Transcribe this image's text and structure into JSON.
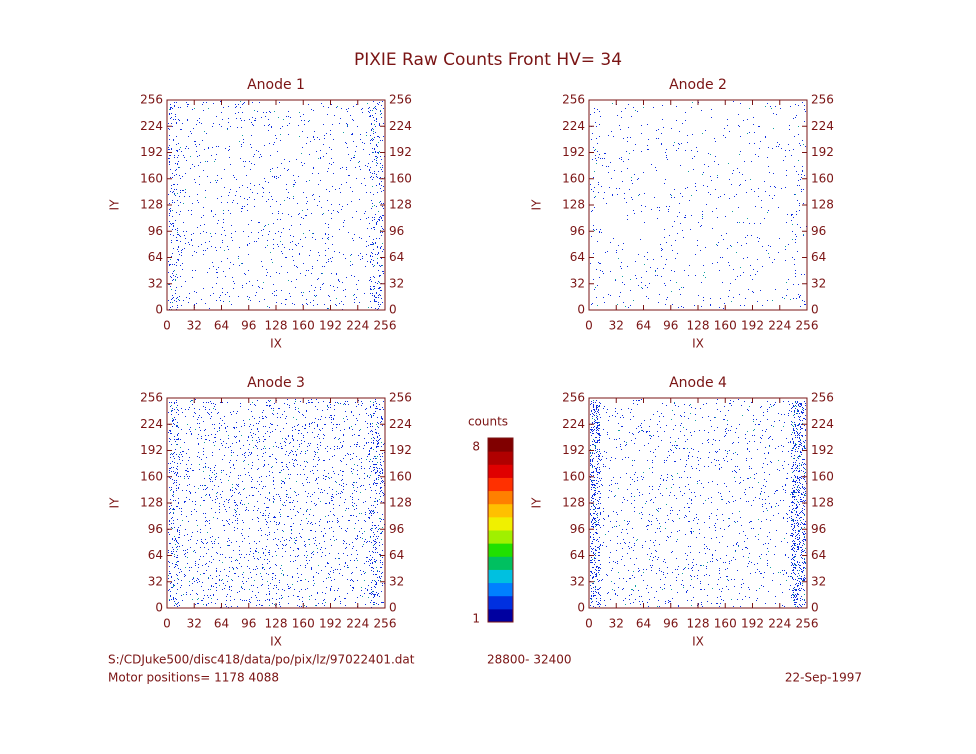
{
  "title": "PIXIE Raw Counts Front HV= 34",
  "chart_data": [
    {
      "type": "heatmap",
      "title": "Anode 1",
      "xlabel": "IX",
      "ylabel": "IY",
      "xlim": [
        0,
        256
      ],
      "ylim": [
        0,
        256
      ],
      "xticks": [
        0,
        32,
        64,
        96,
        128,
        160,
        192,
        224,
        256
      ],
      "yticks": [
        0,
        32,
        64,
        96,
        128,
        160,
        192,
        224,
        256
      ]
    },
    {
      "type": "heatmap",
      "title": "Anode 2",
      "xlabel": "IX",
      "ylabel": "IY",
      "xlim": [
        0,
        256
      ],
      "ylim": [
        0,
        256
      ],
      "xticks": [
        0,
        32,
        64,
        96,
        128,
        160,
        192,
        224,
        256
      ],
      "yticks": [
        0,
        32,
        64,
        96,
        128,
        160,
        192,
        224,
        256
      ]
    },
    {
      "type": "heatmap",
      "title": "Anode 3",
      "xlabel": "IX",
      "ylabel": "IY",
      "xlim": [
        0,
        256
      ],
      "ylim": [
        0,
        256
      ],
      "xticks": [
        0,
        32,
        64,
        96,
        128,
        160,
        192,
        224,
        256
      ],
      "yticks": [
        0,
        32,
        64,
        96,
        128,
        160,
        192,
        224,
        256
      ]
    },
    {
      "type": "heatmap",
      "title": "Anode 4",
      "xlabel": "IX",
      "ylabel": "IY",
      "xlim": [
        0,
        256
      ],
      "ylim": [
        0,
        256
      ],
      "xticks": [
        0,
        32,
        64,
        96,
        128,
        160,
        192,
        224,
        256
      ],
      "yticks": [
        0,
        32,
        64,
        96,
        128,
        160,
        192,
        224,
        256
      ]
    }
  ],
  "colorbar": {
    "label": "counts",
    "lim": [
      1,
      8
    ],
    "ticks": [
      1,
      8
    ],
    "colors": [
      "#0000a0",
      "#0030e0",
      "#0080ff",
      "#00c0e0",
      "#00c060",
      "#20e000",
      "#a0f000",
      "#f0f000",
      "#ffc000",
      "#ff8000",
      "#ff3000",
      "#e00000",
      "#b00000",
      "#800000"
    ]
  },
  "footer": {
    "file": "S:/CDJuke500/disc418/data/po/pix/lz/97022401.dat",
    "range": "28800- 32400",
    "motor": "Motor positions= 1178 4088",
    "date": "22-Sep-1997"
  }
}
